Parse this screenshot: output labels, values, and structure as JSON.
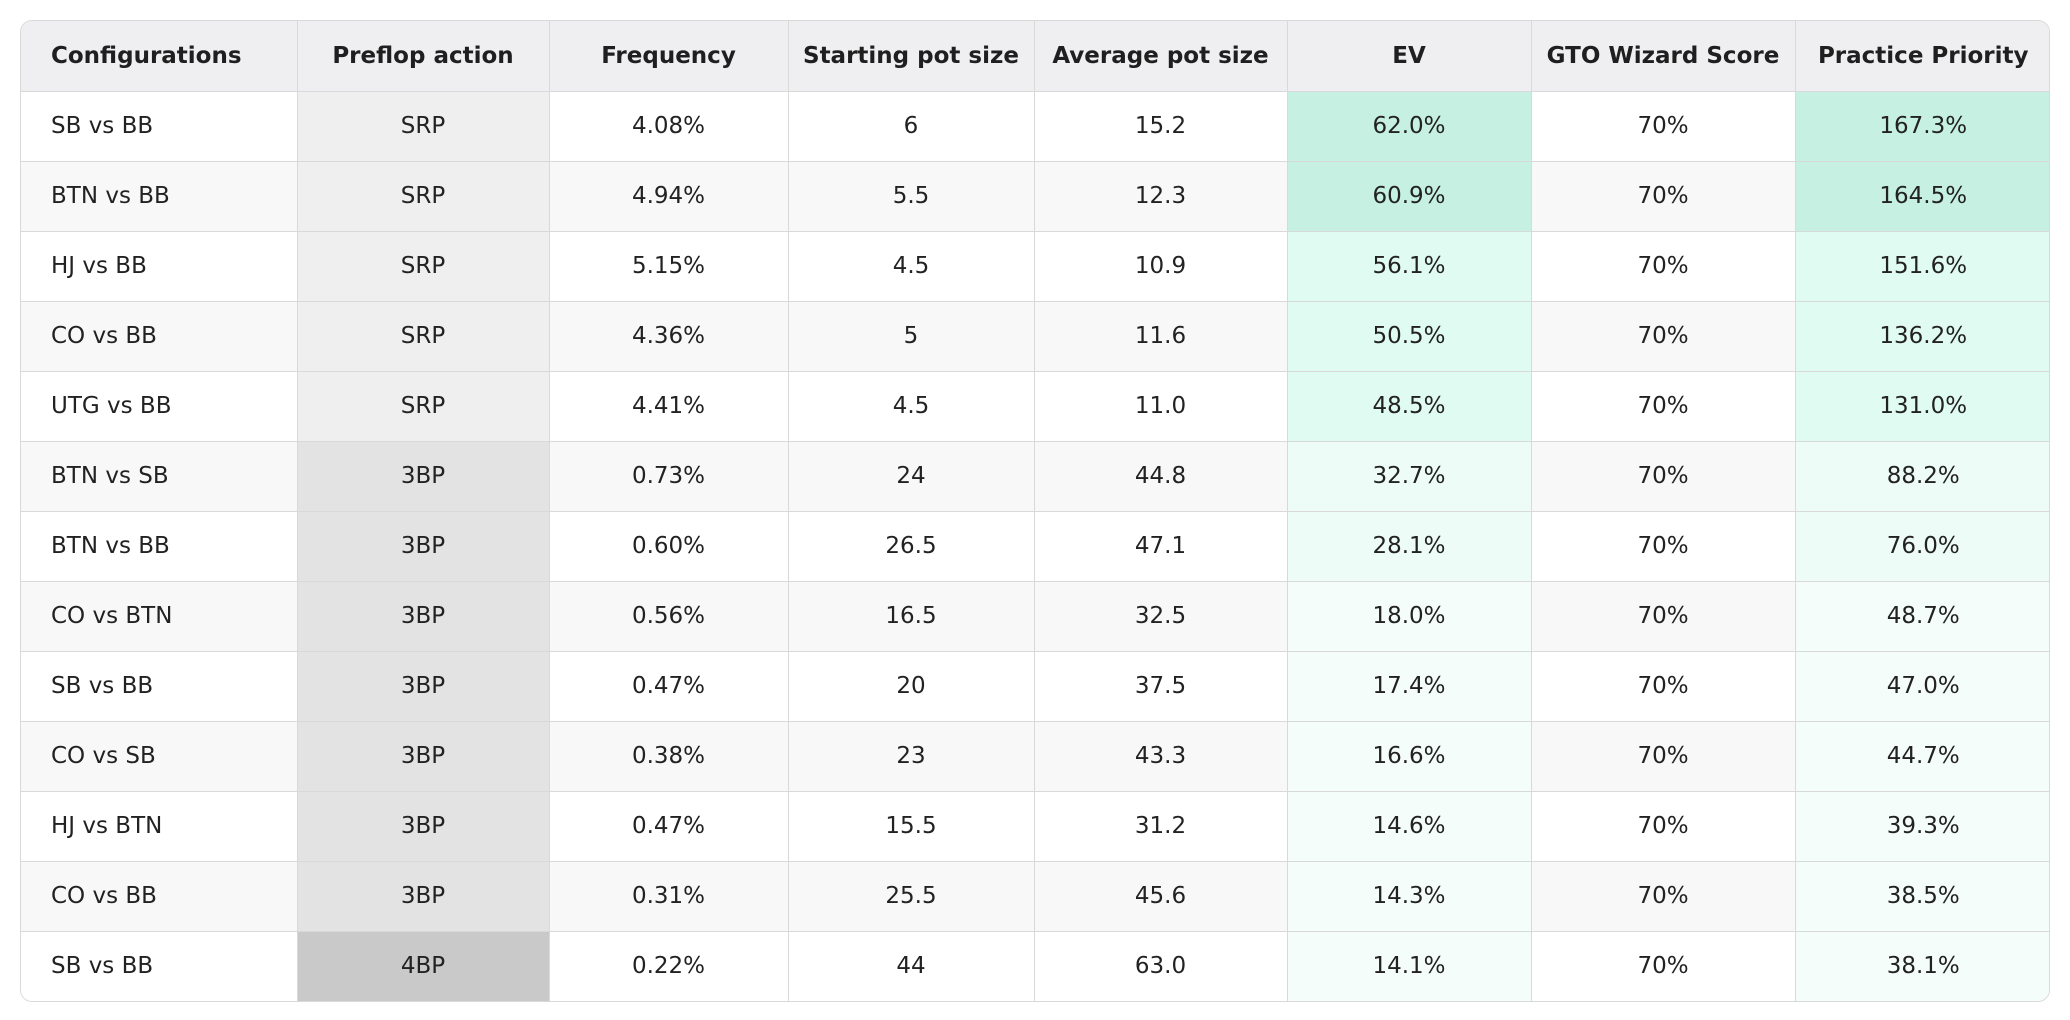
{
  "table": {
    "headers": {
      "configurations": "Configurations",
      "preflop_action": "Preflop action",
      "frequency": "Frequency",
      "starting_pot_size": "Starting pot size",
      "average_pot_size": "Average pot size",
      "ev": "EV",
      "gto_wizard_score": "GTO Wizard Score",
      "practice_priority": "Practice Priority"
    },
    "rows": [
      {
        "configuration": "SB vs BB",
        "preflop_action": "SRP",
        "frequency": "4.08%",
        "starting_pot_size": "6",
        "average_pot_size": "15.2",
        "ev": "62.0%",
        "gto_wizard_score": "70%",
        "practice_priority": "167.3%"
      },
      {
        "configuration": "BTN vs BB",
        "preflop_action": "SRP",
        "frequency": "4.94%",
        "starting_pot_size": "5.5",
        "average_pot_size": "12.3",
        "ev": "60.9%",
        "gto_wizard_score": "70%",
        "practice_priority": "164.5%"
      },
      {
        "configuration": "HJ vs BB",
        "preflop_action": "SRP",
        "frequency": "5.15%",
        "starting_pot_size": "4.5",
        "average_pot_size": "10.9",
        "ev": "56.1%",
        "gto_wizard_score": "70%",
        "practice_priority": "151.6%"
      },
      {
        "configuration": "CO vs BB",
        "preflop_action": "SRP",
        "frequency": "4.36%",
        "starting_pot_size": "5",
        "average_pot_size": "11.6",
        "ev": "50.5%",
        "gto_wizard_score": "70%",
        "practice_priority": "136.2%"
      },
      {
        "configuration": "UTG vs BB",
        "preflop_action": "SRP",
        "frequency": "4.41%",
        "starting_pot_size": "4.5",
        "average_pot_size": "11.0",
        "ev": "48.5%",
        "gto_wizard_score": "70%",
        "practice_priority": "131.0%"
      },
      {
        "configuration": "BTN vs SB",
        "preflop_action": "3BP",
        "frequency": "0.73%",
        "starting_pot_size": "24",
        "average_pot_size": "44.8",
        "ev": "32.7%",
        "gto_wizard_score": "70%",
        "practice_priority": "88.2%"
      },
      {
        "configuration": "BTN vs BB",
        "preflop_action": "3BP",
        "frequency": "0.60%",
        "starting_pot_size": "26.5",
        "average_pot_size": "47.1",
        "ev": "28.1%",
        "gto_wizard_score": "70%",
        "practice_priority": "76.0%"
      },
      {
        "configuration": "CO vs BTN",
        "preflop_action": "3BP",
        "frequency": "0.56%",
        "starting_pot_size": "16.5",
        "average_pot_size": "32.5",
        "ev": "18.0%",
        "gto_wizard_score": "70%",
        "practice_priority": "48.7%"
      },
      {
        "configuration": "SB vs BB",
        "preflop_action": "3BP",
        "frequency": "0.47%",
        "starting_pot_size": "20",
        "average_pot_size": "37.5",
        "ev": "17.4%",
        "gto_wizard_score": "70%",
        "practice_priority": "47.0%"
      },
      {
        "configuration": "CO vs SB",
        "preflop_action": "3BP",
        "frequency": "0.38%",
        "starting_pot_size": "23",
        "average_pot_size": "43.3",
        "ev": "16.6%",
        "gto_wizard_score": "70%",
        "practice_priority": "44.7%"
      },
      {
        "configuration": "HJ vs BTN",
        "preflop_action": "3BP",
        "frequency": "0.47%",
        "starting_pot_size": "15.5",
        "average_pot_size": "31.2",
        "ev": "14.6%",
        "gto_wizard_score": "70%",
        "practice_priority": "39.3%"
      },
      {
        "configuration": "CO vs BB",
        "preflop_action": "3BP",
        "frequency": "0.31%",
        "starting_pot_size": "25.5",
        "average_pot_size": "45.6",
        "ev": "14.3%",
        "gto_wizard_score": "70%",
        "practice_priority": "38.5%"
      },
      {
        "configuration": "SB vs BB",
        "preflop_action": "4BP",
        "frequency": "0.22%",
        "starting_pot_size": "44",
        "average_pot_size": "63.0",
        "ev": "14.1%",
        "gto_wizard_score": "70%",
        "practice_priority": "38.1%"
      }
    ]
  }
}
